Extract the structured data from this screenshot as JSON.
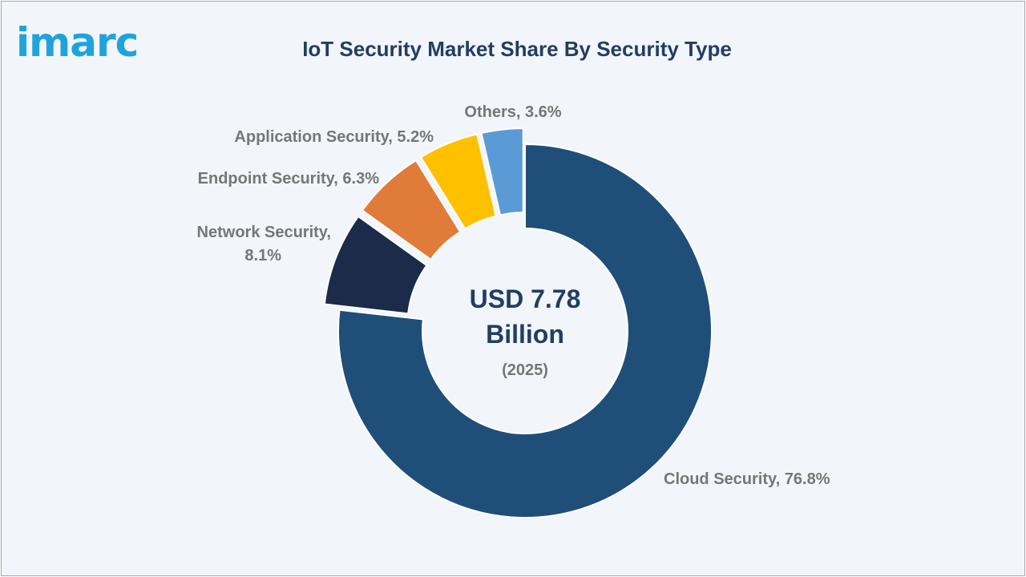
{
  "logo": {
    "text": "imarc"
  },
  "chart_data": {
    "type": "pie",
    "title": "IoT Security Market Share By Security Type",
    "center": {
      "line1": "USD 7.78",
      "line2": "Billion",
      "line3": "(2025)"
    },
    "slices": [
      {
        "name": "Cloud Security",
        "value": 76.8,
        "label": "Cloud Security, 76.8%",
        "color": "#1f4e79"
      },
      {
        "name": "Network Security",
        "value": 8.1,
        "label_lines": [
          "Network Security,",
          "8.1%"
        ],
        "color": "#1c2b4a"
      },
      {
        "name": "Endpoint Security",
        "value": 6.3,
        "label": "Endpoint Security, 6.3%",
        "color": "#e07b3a"
      },
      {
        "name": "Application Security",
        "value": 5.2,
        "label": "Application Security, 5.2%",
        "color": "#ffc000"
      },
      {
        "name": "Others",
        "value": 3.6,
        "label": "Others, 3.6%",
        "color": "#5b9bd5"
      }
    ]
  }
}
